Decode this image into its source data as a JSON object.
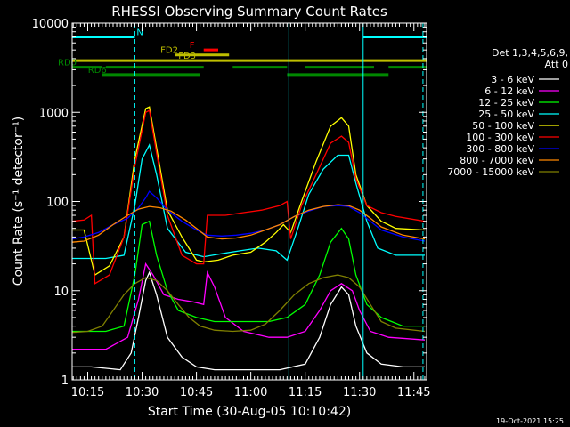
{
  "chart_data": {
    "type": "line",
    "title": "RHESSI Observing Summary Count Rates",
    "xlabel": "Start Time (30-Aug-05 10:10:42)",
    "ylabel": "Count Rate (s⁻¹ detector⁻¹)",
    "ylog": true,
    "ylim": [
      1,
      10000
    ],
    "y_ticks": [
      {
        "value": 1,
        "label": "1"
      },
      {
        "value": 10,
        "label": "10"
      },
      {
        "value": 100,
        "label": "100"
      },
      {
        "value": 1000,
        "label": "1000"
      },
      {
        "value": 10000,
        "label": "10000"
      }
    ],
    "x_ticks": [
      {
        "t": "10:15",
        "label": "10:15"
      },
      {
        "t": "10:30",
        "label": "10:30"
      },
      {
        "t": "10:45",
        "label": "10:45"
      },
      {
        "t": "11:00",
        "label": "11:00"
      },
      {
        "t": "11:15",
        "label": "11:15"
      },
      {
        "t": "11:30",
        "label": "11:30"
      },
      {
        "t": "11:45",
        "label": "11:45"
      }
    ],
    "xlim": [
      "10:10:42",
      "11:48:30"
    ],
    "legend_header": [
      "Det 1,3,4,5,6,9,",
      "Att 0"
    ],
    "legend_placement": "right",
    "timestamp": "19-Oct-2021 15:25",
    "series": [
      {
        "name": "3 - 6 keV",
        "color": "#ffffff",
        "points": [
          [
            "10:10:42",
            1.4
          ],
          [
            "10:16",
            1.4
          ],
          [
            "10:24",
            1.3
          ],
          [
            "10:27",
            2
          ],
          [
            "10:29",
            5
          ],
          [
            "10:31",
            13
          ],
          [
            "10:32",
            16
          ],
          [
            "10:34",
            9
          ],
          [
            "10:37",
            3
          ],
          [
            "10:41",
            1.8
          ],
          [
            "10:45",
            1.4
          ],
          [
            "10:50",
            1.3
          ],
          [
            "10:55",
            1.3
          ],
          [
            "11:00",
            1.3
          ],
          [
            "11:08",
            1.3
          ],
          [
            "11:15",
            1.5
          ],
          [
            "11:19",
            3
          ],
          [
            "11:22",
            7
          ],
          [
            "11:25",
            11
          ],
          [
            "11:27",
            9
          ],
          [
            "11:29",
            4
          ],
          [
            "11:32",
            2
          ],
          [
            "11:36",
            1.5
          ],
          [
            "11:42",
            1.4
          ],
          [
            "11:48",
            1.4
          ]
        ]
      },
      {
        "name": "6 - 12 keV",
        "color": "#ff00ff",
        "points": [
          [
            "10:10:42",
            2.2
          ],
          [
            "10:20",
            2.2
          ],
          [
            "10:26",
            3
          ],
          [
            "10:29",
            8
          ],
          [
            "10:31",
            20
          ],
          [
            "10:33",
            15
          ],
          [
            "10:36",
            9
          ],
          [
            "10:40",
            8
          ],
          [
            "10:44",
            7.5
          ],
          [
            "10:47",
            7
          ],
          [
            "10:48",
            16
          ],
          [
            "10:50",
            11
          ],
          [
            "10:53",
            5
          ],
          [
            "10:58",
            3.5
          ],
          [
            "11:05",
            3
          ],
          [
            "11:10",
            3
          ],
          [
            "11:15",
            3.5
          ],
          [
            "11:19",
            6
          ],
          [
            "11:22",
            10
          ],
          [
            "11:25",
            12
          ],
          [
            "11:28",
            10
          ],
          [
            "11:30",
            6
          ],
          [
            "11:33",
            3.5
          ],
          [
            "11:38",
            3
          ],
          [
            "11:48",
            2.8
          ]
        ]
      },
      {
        "name": "12 - 25 keV",
        "color": "#00ff00",
        "points": [
          [
            "10:10:42",
            3.5
          ],
          [
            "10:20",
            3.5
          ],
          [
            "10:25",
            4
          ],
          [
            "10:28",
            15
          ],
          [
            "10:30",
            55
          ],
          [
            "10:32",
            60
          ],
          [
            "10:34",
            25
          ],
          [
            "10:37",
            10
          ],
          [
            "10:40",
            6
          ],
          [
            "10:45",
            5
          ],
          [
            "10:50",
            4.5
          ],
          [
            "10:55",
            4.5
          ],
          [
            "11:00",
            4.5
          ],
          [
            "11:05",
            4.5
          ],
          [
            "11:10",
            5
          ],
          [
            "11:15",
            7
          ],
          [
            "11:19",
            15
          ],
          [
            "11:22",
            35
          ],
          [
            "11:25",
            50
          ],
          [
            "11:27",
            38
          ],
          [
            "11:29",
            15
          ],
          [
            "11:32",
            7
          ],
          [
            "11:36",
            5
          ],
          [
            "11:42",
            4
          ],
          [
            "11:48",
            4
          ]
        ]
      },
      {
        "name": "25 - 50 keV",
        "color": "#00ffff",
        "points": [
          [
            "10:10:42",
            23
          ],
          [
            "10:20",
            23
          ],
          [
            "10:25",
            25
          ],
          [
            "10:28",
            90
          ],
          [
            "10:30",
            300
          ],
          [
            "10:32",
            430
          ],
          [
            "10:34",
            200
          ],
          [
            "10:37",
            50
          ],
          [
            "10:42",
            27
          ],
          [
            "10:47",
            24
          ],
          [
            "10:52",
            26
          ],
          [
            "10:57",
            28
          ],
          [
            "11:02",
            30
          ],
          [
            "11:07",
            28
          ],
          [
            "11:10",
            22
          ],
          [
            "11:13",
            50
          ],
          [
            "11:16",
            120
          ],
          [
            "11:20",
            230
          ],
          [
            "11:24",
            330
          ],
          [
            "11:27",
            330
          ],
          [
            "11:29",
            160
          ],
          [
            "11:32",
            60
          ],
          [
            "11:35",
            30
          ],
          [
            "11:40",
            25
          ],
          [
            "11:48",
            25
          ]
        ]
      },
      {
        "name": "50 - 100 keV",
        "color": "#ffff00",
        "points": [
          [
            "10:10:42",
            48
          ],
          [
            "10:14",
            48
          ],
          [
            "10:17",
            15
          ],
          [
            "10:21",
            19
          ],
          [
            "10:25",
            40
          ],
          [
            "10:28",
            300
          ],
          [
            "10:31",
            1100
          ],
          [
            "10:32",
            1150
          ],
          [
            "10:34",
            400
          ],
          [
            "10:37",
            80
          ],
          [
            "10:41",
            40
          ],
          [
            "10:45",
            22
          ],
          [
            "10:47",
            21
          ],
          [
            "10:51",
            22
          ],
          [
            "10:55",
            25
          ],
          [
            "11:00",
            27
          ],
          [
            "11:04",
            35
          ],
          [
            "11:07",
            45
          ],
          [
            "11:09",
            55
          ],
          [
            "11:11",
            45
          ],
          [
            "11:14",
            100
          ],
          [
            "11:18",
            280
          ],
          [
            "11:22",
            700
          ],
          [
            "11:25",
            870
          ],
          [
            "11:27",
            700
          ],
          [
            "11:29",
            200
          ],
          [
            "11:32",
            90
          ],
          [
            "11:36",
            60
          ],
          [
            "11:40",
            50
          ],
          [
            "11:48",
            48
          ]
        ]
      },
      {
        "name": "100 - 300 keV",
        "color": "#ff0000",
        "points": [
          [
            "10:10:42",
            60
          ],
          [
            "10:14",
            62
          ],
          [
            "10:16",
            70
          ],
          [
            "10:17",
            12
          ],
          [
            "10:21",
            15
          ],
          [
            "10:25",
            40
          ],
          [
            "10:28",
            250
          ],
          [
            "10:31",
            1000
          ],
          [
            "10:32",
            1050
          ],
          [
            "10:34",
            350
          ],
          [
            "10:37",
            70
          ],
          [
            "10:41",
            25
          ],
          [
            "10:45",
            20
          ],
          [
            "10:47",
            20
          ],
          [
            "10:48",
            70
          ],
          [
            "10:53",
            70
          ],
          [
            "10:58",
            75
          ],
          [
            "11:03",
            80
          ],
          [
            "11:08",
            90
          ],
          [
            "11:10",
            100
          ],
          [
            "11:11",
            38
          ],
          [
            "11:14",
            90
          ],
          [
            "11:18",
            200
          ],
          [
            "11:22",
            450
          ],
          [
            "11:25",
            540
          ],
          [
            "11:27",
            460
          ],
          [
            "11:29",
            180
          ],
          [
            "11:32",
            90
          ],
          [
            "11:36",
            75
          ],
          [
            "11:40",
            68
          ],
          [
            "11:48",
            60
          ]
        ]
      },
      {
        "name": "300 - 800 keV",
        "color": "#0000ff",
        "points": [
          [
            "10:10:42",
            38
          ],
          [
            "10:14",
            40
          ],
          [
            "10:18",
            45
          ],
          [
            "10:22",
            55
          ],
          [
            "10:26",
            65
          ],
          [
            "10:29",
            85
          ],
          [
            "10:31",
            110
          ],
          [
            "10:32",
            130
          ],
          [
            "10:34",
            110
          ],
          [
            "10:37",
            80
          ],
          [
            "10:41",
            60
          ],
          [
            "10:45",
            48
          ],
          [
            "10:48",
            42
          ],
          [
            "10:52",
            41
          ],
          [
            "10:56",
            42
          ],
          [
            "11:00",
            44
          ],
          [
            "11:04",
            48
          ],
          [
            "11:08",
            55
          ],
          [
            "11:12",
            68
          ],
          [
            "11:16",
            78
          ],
          [
            "11:20",
            88
          ],
          [
            "11:24",
            90
          ],
          [
            "11:27",
            88
          ],
          [
            "11:30",
            75
          ],
          [
            "11:33",
            60
          ],
          [
            "11:36",
            48
          ],
          [
            "11:42",
            40
          ],
          [
            "11:48",
            36
          ]
        ]
      },
      {
        "name": "800 - 7000 keV",
        "color": "#ff8800",
        "points": [
          [
            "10:10:42",
            35
          ],
          [
            "10:14",
            36
          ],
          [
            "10:18",
            42
          ],
          [
            "10:22",
            55
          ],
          [
            "10:26",
            70
          ],
          [
            "10:29",
            82
          ],
          [
            "10:32",
            88
          ],
          [
            "10:35",
            85
          ],
          [
            "10:38",
            78
          ],
          [
            "10:42",
            62
          ],
          [
            "10:45",
            50
          ],
          [
            "10:48",
            40
          ],
          [
            "10:52",
            38
          ],
          [
            "10:56",
            39
          ],
          [
            "11:00",
            42
          ],
          [
            "11:04",
            48
          ],
          [
            "11:08",
            55
          ],
          [
            "11:12",
            68
          ],
          [
            "11:16",
            80
          ],
          [
            "11:20",
            88
          ],
          [
            "11:24",
            92
          ],
          [
            "11:27",
            90
          ],
          [
            "11:30",
            80
          ],
          [
            "11:33",
            65
          ],
          [
            "11:36",
            52
          ],
          [
            "11:42",
            42
          ],
          [
            "11:48",
            38
          ]
        ]
      },
      {
        "name": "7000 - 15000 keV",
        "color": "#808000",
        "points": [
          [
            "10:10:42",
            3.4
          ],
          [
            "10:15",
            3.5
          ],
          [
            "10:19",
            4
          ],
          [
            "10:22",
            6
          ],
          [
            "10:25",
            9
          ],
          [
            "10:28",
            12
          ],
          [
            "10:31",
            14
          ],
          [
            "10:34",
            13
          ],
          [
            "10:37",
            10
          ],
          [
            "10:40",
            7
          ],
          [
            "10:43",
            5
          ],
          [
            "10:46",
            4
          ],
          [
            "10:50",
            3.6
          ],
          [
            "10:55",
            3.5
          ],
          [
            "11:00",
            3.6
          ],
          [
            "11:04",
            4.2
          ],
          [
            "11:08",
            6
          ],
          [
            "11:12",
            9
          ],
          [
            "11:16",
            12
          ],
          [
            "11:20",
            14
          ],
          [
            "11:24",
            15
          ],
          [
            "11:27",
            14
          ],
          [
            "11:30",
            11
          ],
          [
            "11:33",
            7
          ],
          [
            "11:36",
            4.5
          ],
          [
            "11:40",
            3.8
          ],
          [
            "11:48",
            3.5
          ]
        ]
      }
    ],
    "segments": [
      {
        "label": "N",
        "color": "#00ffff",
        "level": 7000,
        "ranges": [
          [
            "10:10:42",
            "10:28"
          ],
          [
            "11:31",
            "11:48:30"
          ]
        ]
      },
      {
        "label": "F",
        "color": "#ff0000",
        "level": 5000,
        "ranges": [
          [
            "10:47",
            "10:51"
          ]
        ]
      },
      {
        "label": "FD2",
        "color": "#bfbf00",
        "level": 4400,
        "ranges": [
          [
            "10:39",
            "10:54"
          ]
        ]
      },
      {
        "label": "FD3",
        "color": "#bfbf00",
        "level": 3800,
        "ranges": [
          [
            "10:10:42",
            "11:48:30"
          ]
        ]
      },
      {
        "label": "RD0",
        "color": "#008800",
        "level": 3200,
        "ranges": [
          [
            "10:10:42",
            "10:19"
          ],
          [
            "10:20",
            "10:47"
          ],
          [
            "10:55",
            "11:10"
          ],
          [
            "11:15",
            "11:34"
          ],
          [
            "11:38",
            "11:48:30"
          ]
        ]
      },
      {
        "label": "RD6",
        "color": "#008800",
        "level": 2650,
        "ranges": [
          [
            "10:19",
            "10:46"
          ],
          [
            "11:10",
            "11:38"
          ]
        ]
      }
    ],
    "vlines": [
      {
        "t": "10:10:42",
        "color": "#00ffff",
        "style": "solid"
      },
      {
        "t": "10:28",
        "color": "#00ffff",
        "style": "dashed"
      },
      {
        "t": "11:10:30",
        "color": "#00ffff",
        "style": "solid"
      },
      {
        "t": "11:31",
        "color": "#00ffff",
        "style": "solid"
      },
      {
        "t": "11:47:30",
        "color": "#00ffff",
        "style": "dashed"
      }
    ]
  }
}
